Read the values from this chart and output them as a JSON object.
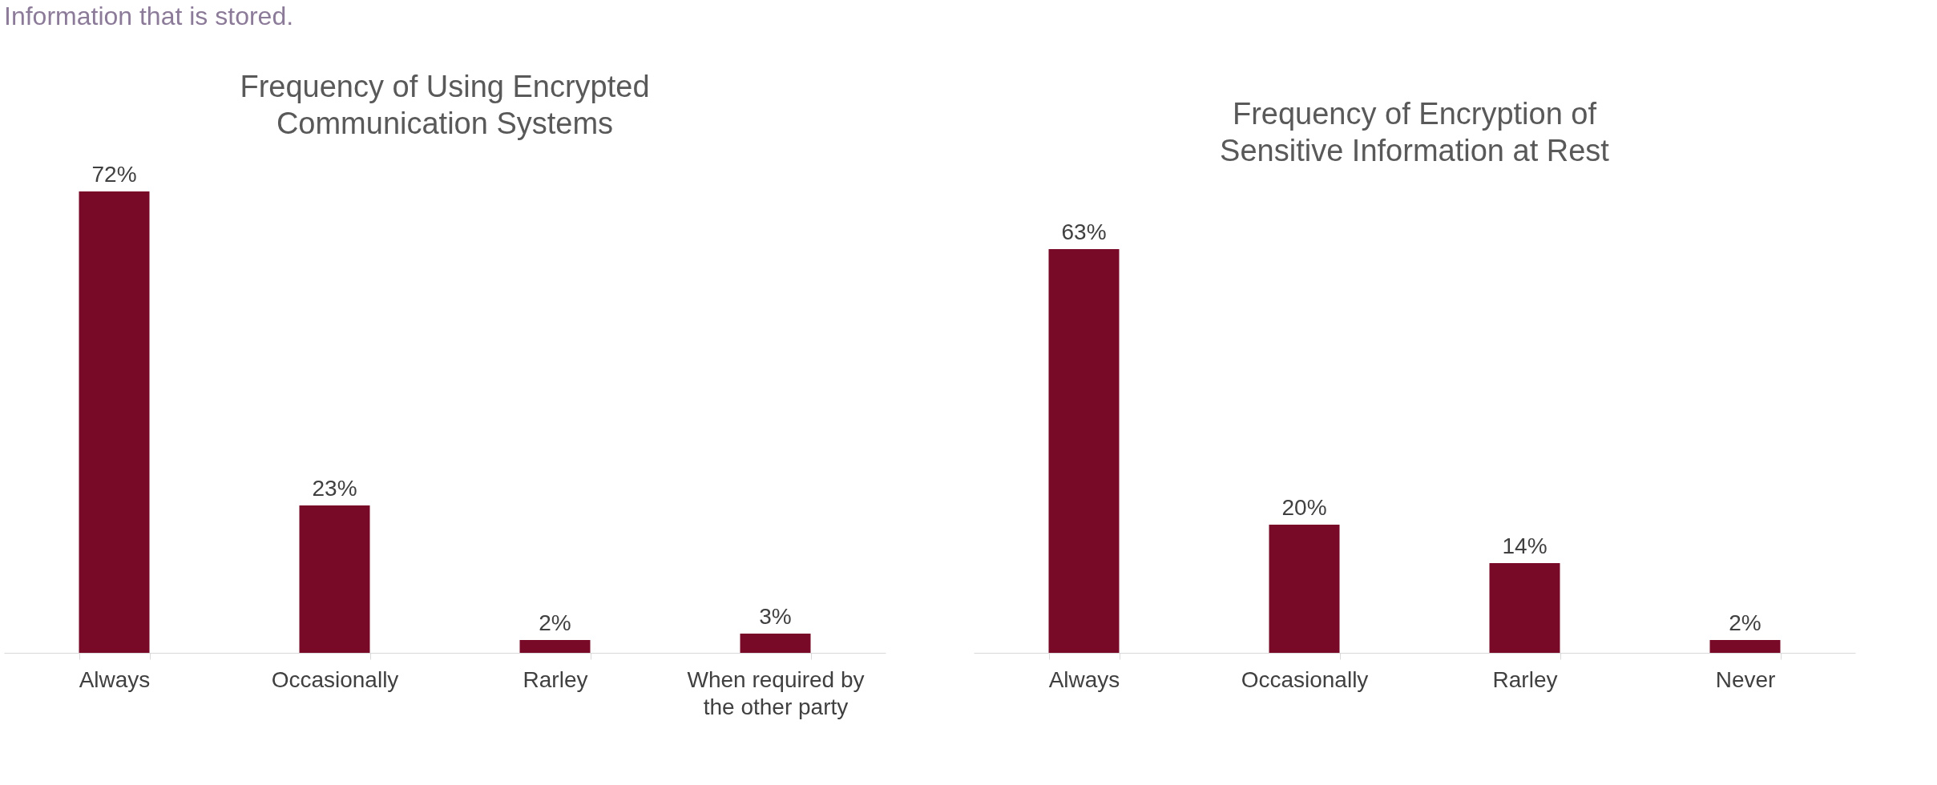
{
  "chart_data": [
    {
      "type": "bar",
      "title": [
        "Frequency of Using Encrypted",
        "Communication Systems"
      ],
      "categories": [
        "Always",
        "Occasionally",
        "Rarley",
        [
          "When required by",
          "the other party"
        ]
      ],
      "values": [
        72,
        23,
        2,
        3
      ],
      "value_labels": [
        "72%",
        "23%",
        "2%",
        "3%"
      ],
      "color": "#780a28",
      "annotations": [
        "Information that is stored."
      ]
    },
    {
      "type": "bar",
      "title": [
        "Frequency of Encryption of",
        "Sensitive Information at Rest"
      ],
      "categories": [
        "Always",
        "Occasionally",
        "Rarley",
        "Never"
      ],
      "values": [
        63,
        20,
        14,
        2
      ],
      "value_labels": [
        "63%",
        "20%",
        "14%",
        "2%"
      ],
      "color": "#780a28"
    }
  ]
}
